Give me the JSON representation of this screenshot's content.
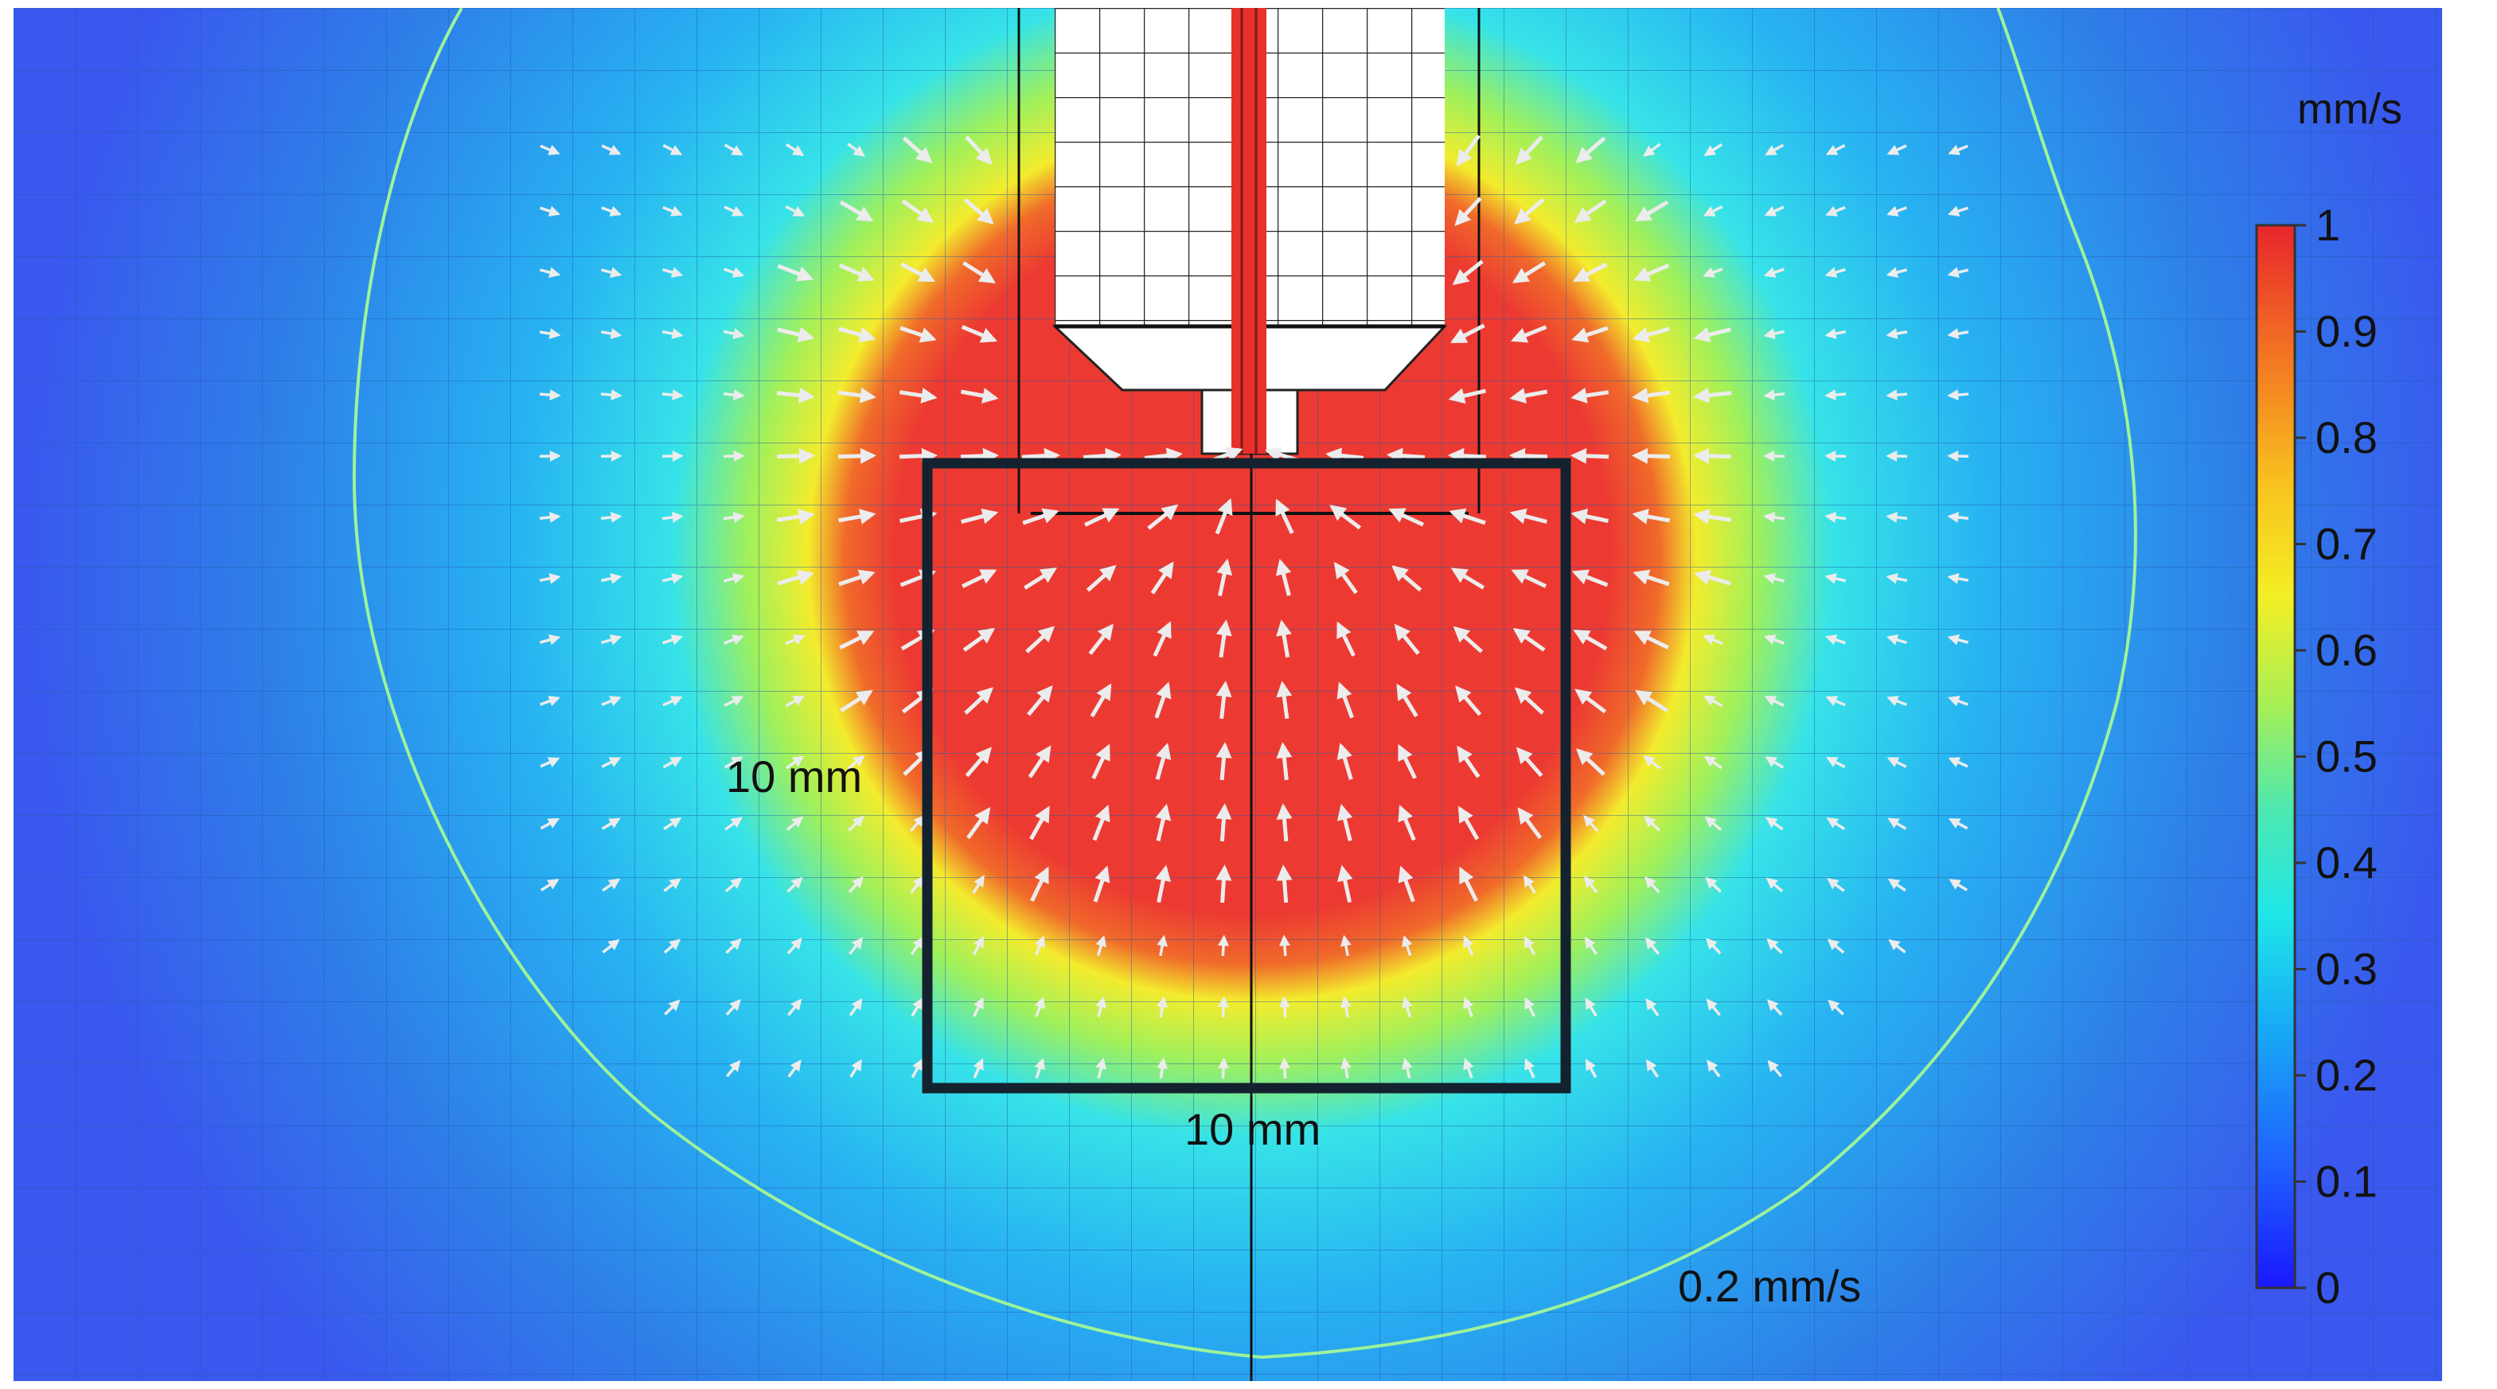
{
  "colorbar": {
    "unit": "mm/s",
    "min": 0,
    "max": 1,
    "ticks": [
      "1",
      "0.9",
      "0.8",
      "0.7",
      "0.6",
      "0.5",
      "0.4",
      "0.3",
      "0.2",
      "0.1",
      "0"
    ],
    "colormap": [
      "#2733ff",
      "#1f7bff",
      "#17c3f0",
      "#2de8d0",
      "#8cf06a",
      "#f3ee2a",
      "#f8b020",
      "#f06628",
      "#e8302c"
    ]
  },
  "annotations": {
    "height_label": "10 mm",
    "width_label": "10 mm",
    "contour_label": "0.2 mm/s"
  },
  "colors": {
    "background_blue": "#2e7fe8",
    "field_red": "#ec3a32",
    "field_yellow": "#f3ec2d",
    "field_cyan": "#36e3e8",
    "grid_line": "#1f5aa8",
    "contour_line": "#9ef39a",
    "square_outline": "#13222e",
    "arrow_color": "#e8e8e8"
  }
}
